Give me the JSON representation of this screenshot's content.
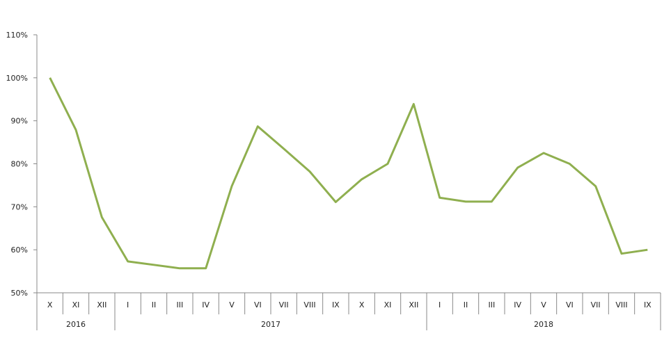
{
  "chart_data": {
    "type": "line",
    "title": "",
    "xlabel": "",
    "ylabel": "",
    "ylim": [
      50,
      110
    ],
    "y_ticks": [
      "50%",
      "60%",
      "70%",
      "80%",
      "90%",
      "100%",
      "110%"
    ],
    "y_tick_values": [
      50,
      60,
      70,
      80,
      90,
      100,
      110
    ],
    "grid": false,
    "legend": "none",
    "line_color": "#8faf4f",
    "categories": [
      "X",
      "XI",
      "XII",
      "I",
      "II",
      "III",
      "IV",
      "V",
      "VI",
      "VII",
      "VIII",
      "IX",
      "X",
      "XI",
      "XII",
      "I",
      "II",
      "III",
      "IV",
      "V",
      "VI",
      "VII",
      "VIII",
      "IX"
    ],
    "year_groups": [
      {
        "label": "2016",
        "count": 3
      },
      {
        "label": "2017",
        "count": 12
      },
      {
        "label": "2018",
        "count": 9
      }
    ],
    "series": [
      {
        "values": [
          100,
          87.9,
          67.6,
          57.3,
          56.5,
          55.7,
          55.7,
          74.8,
          88.7,
          83.5,
          78.2,
          71.1,
          76.4,
          80.0,
          93.9,
          72.1,
          71.2,
          71.2,
          79.1,
          82.5,
          80.0,
          74.8,
          59.1,
          60.0
        ]
      }
    ]
  }
}
